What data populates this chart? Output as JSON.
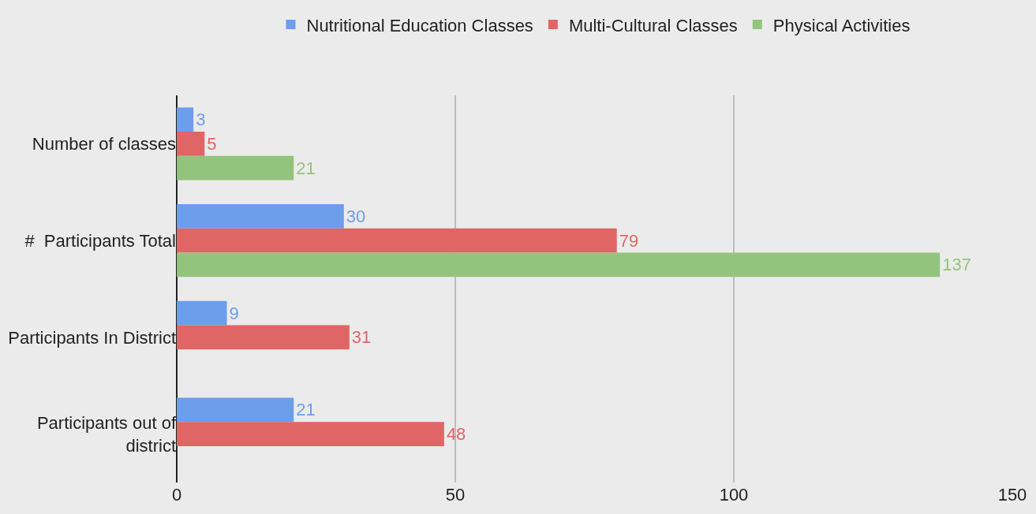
{
  "chart_data": {
    "type": "bar",
    "orientation": "horizontal",
    "categories": [
      "Number of classes",
      "#  Participants Total",
      "Participants In District",
      "Participants out of district"
    ],
    "series": [
      {
        "name": "Nutritional Education Classes",
        "color": "#6d9eeb",
        "values": [
          3,
          30,
          9,
          21
        ]
      },
      {
        "name": "Multi-Cultural Classes",
        "color": "#e06666",
        "values": [
          5,
          79,
          31,
          48
        ]
      },
      {
        "name": "Physical Activities",
        "color": "#93c47d",
        "values": [
          21,
          137,
          null,
          null
        ]
      }
    ],
    "xlim": [
      0,
      150
    ],
    "xticks": [
      0,
      50,
      100,
      150
    ],
    "grid": "x",
    "legend": "top",
    "data_labels": true
  }
}
